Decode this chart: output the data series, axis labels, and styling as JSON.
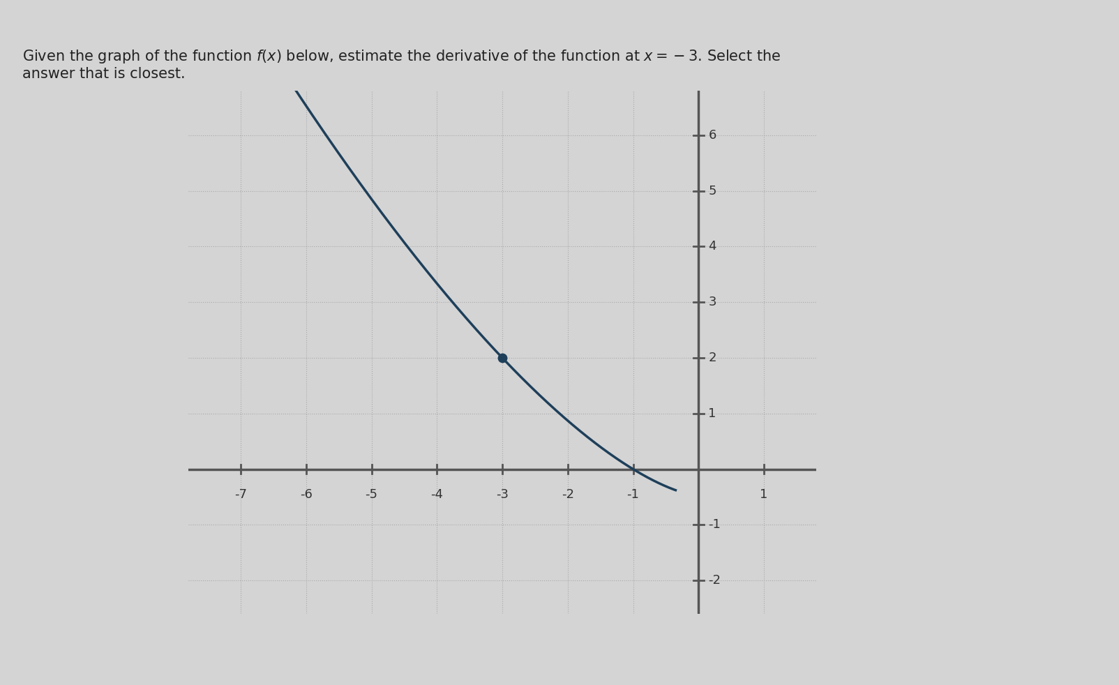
{
  "title_text": "Given the graph of the function $f(x)$ below, estimate the derivative of the function at $x = -3$. Select the\nanswer that is closest.",
  "title_fontsize": 15,
  "background_color": "#d4d4d4",
  "curve_color": "#1e3f5a",
  "curve_linewidth": 2.5,
  "axis_color": "#555555",
  "axis_linewidth": 2.5,
  "grid_color": "#aaaaaa",
  "grid_linestyle": ":",
  "grid_linewidth": 0.8,
  "dot_x": -3,
  "dot_y": 2,
  "dot_color": "#1e3f5a",
  "dot_size": 80,
  "x_ticks": [
    -7,
    -6,
    -5,
    -4,
    -3,
    -2,
    -1,
    1
  ],
  "y_ticks": [
    -2,
    -1,
    1,
    2,
    3,
    4,
    5,
    6
  ],
  "xlim": [
    -7.8,
    1.8
  ],
  "ylim": [
    -2.6,
    6.8
  ],
  "x_axis_pos": 0,
  "y_axis_pos": 0,
  "tick_fontsize": 13,
  "fig_width": 16.04,
  "fig_height": 9.82,
  "fig_dpi": 100,
  "curve_x_start": -7.5,
  "curve_x_end": -0.55,
  "highlight_x": 0
}
